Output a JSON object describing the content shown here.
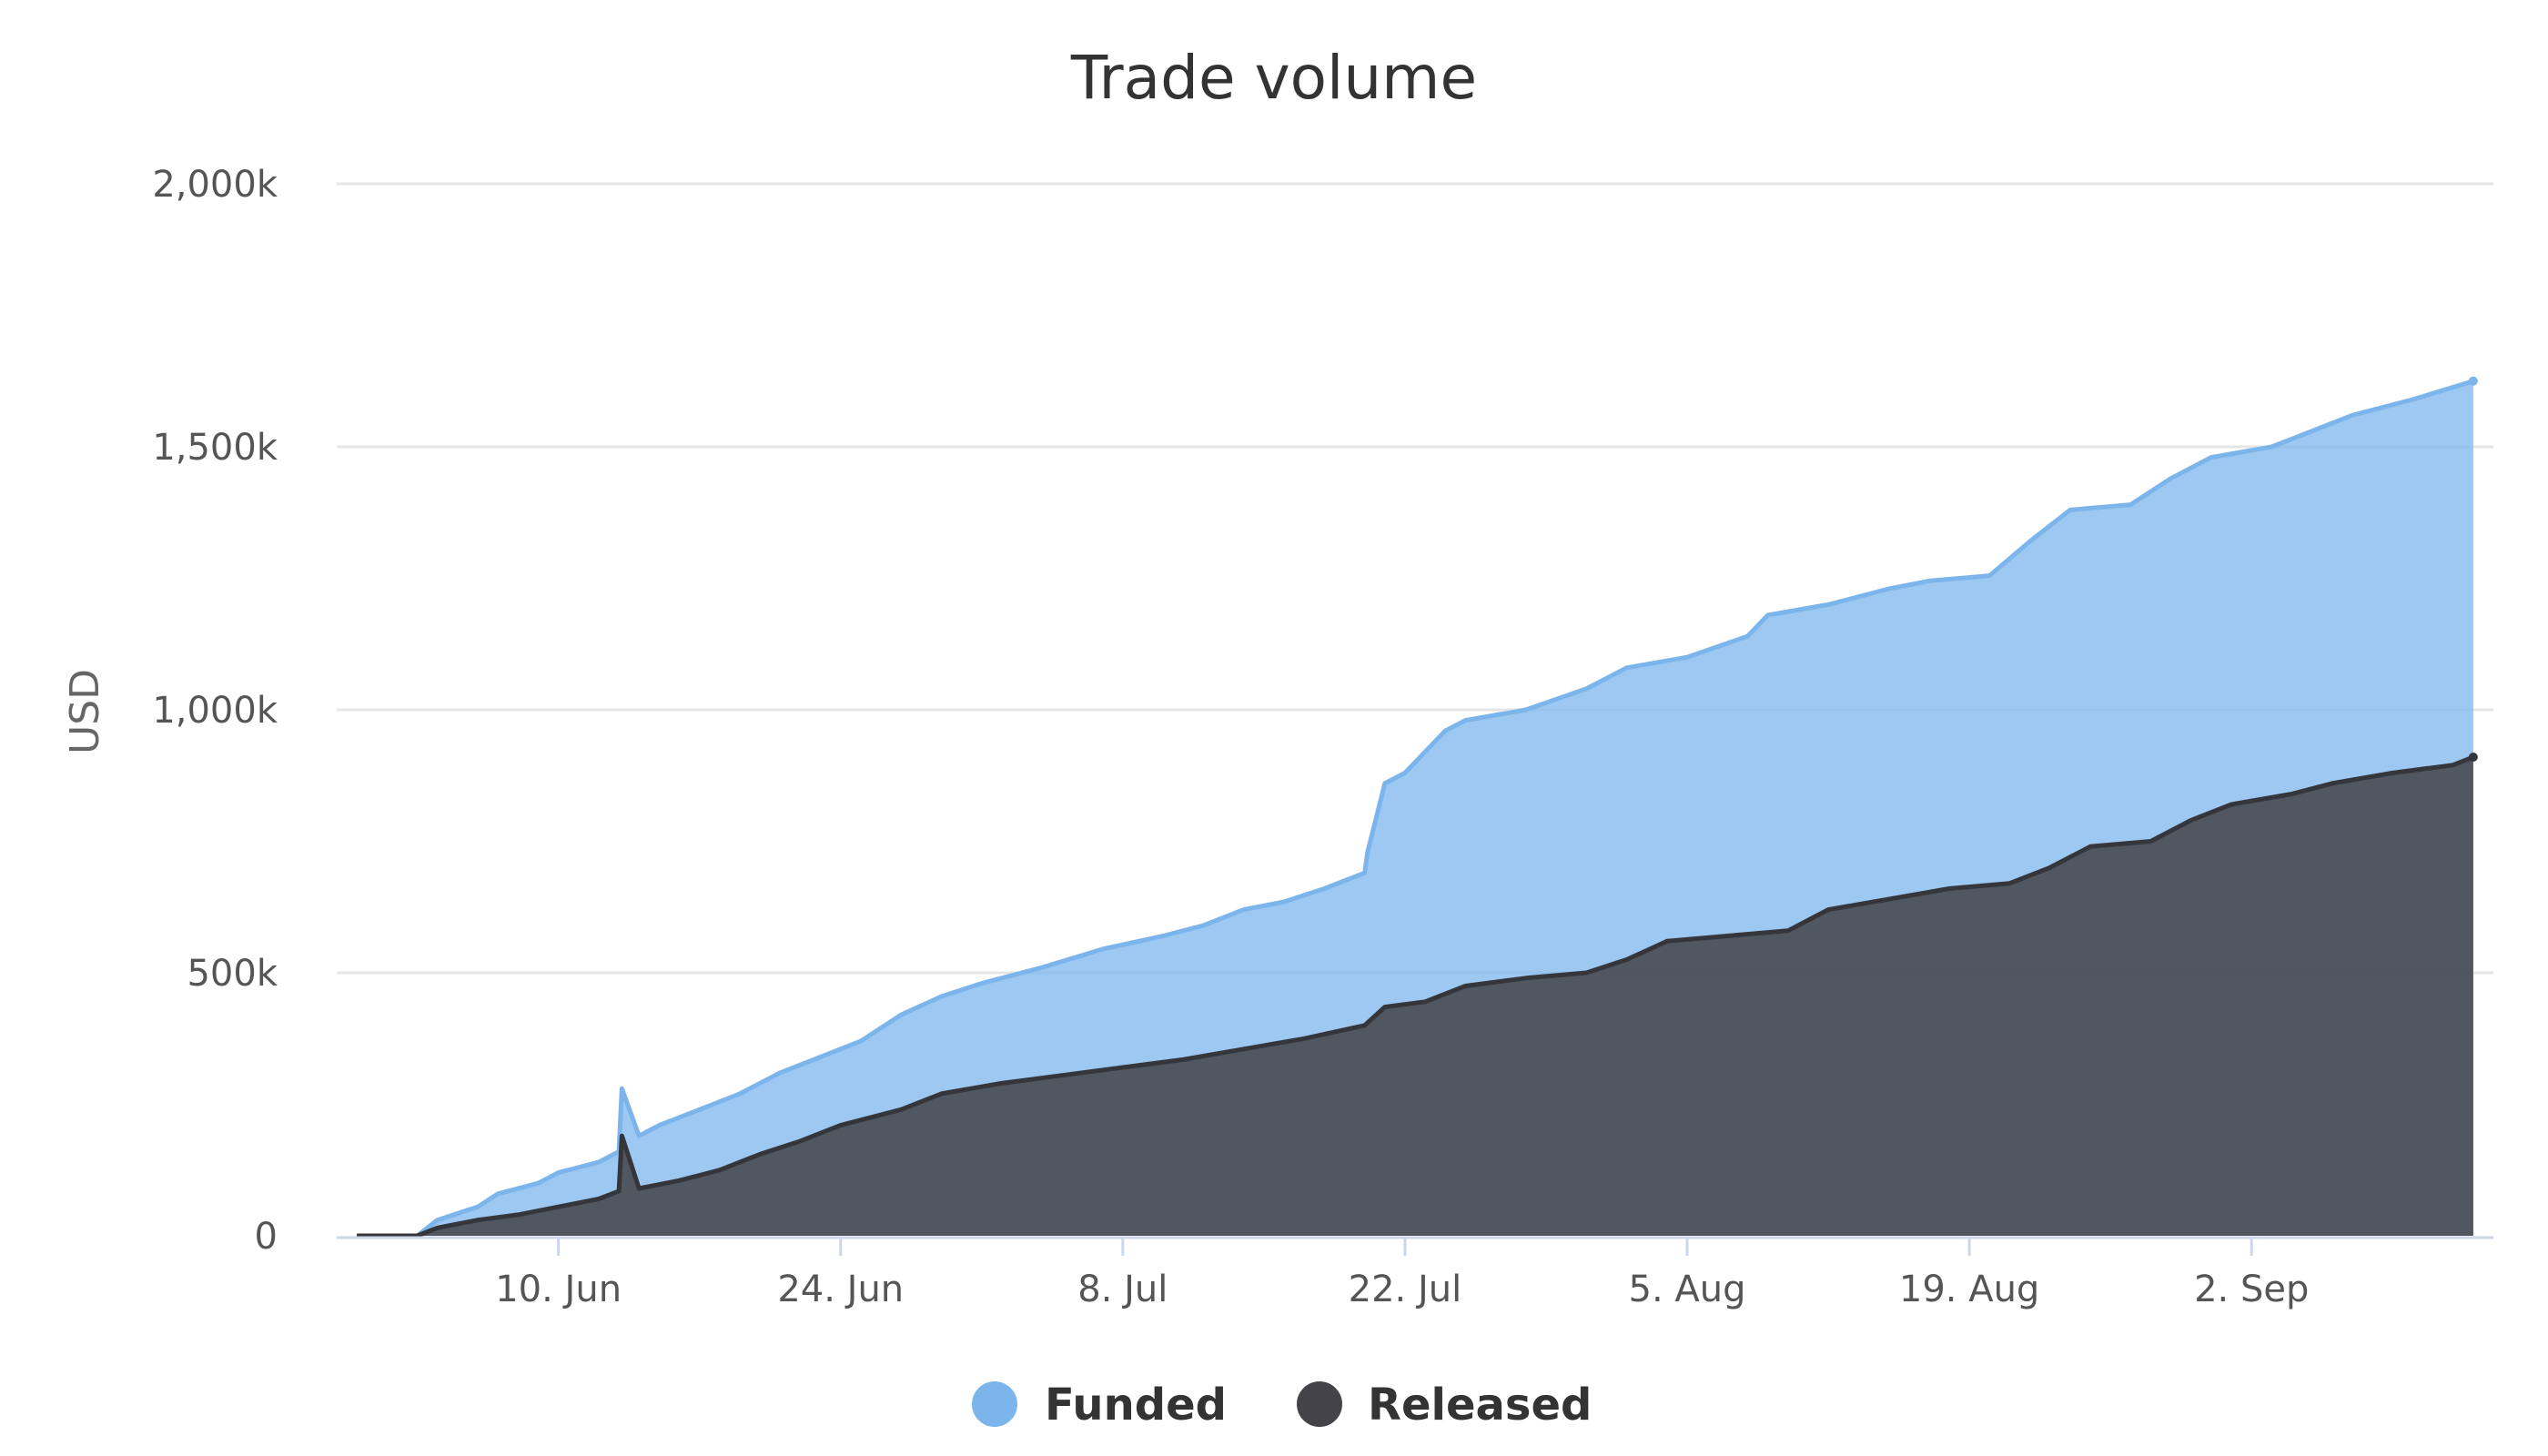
{
  "chart_data": {
    "type": "area",
    "title": "Trade volume",
    "ylabel": "USD",
    "xlabel": "",
    "ylim": [
      0,
      2000000
    ],
    "y_ticks": [
      {
        "value": 0,
        "label": "0"
      },
      {
        "value": 500000,
        "label": "500k"
      },
      {
        "value": 1000000,
        "label": "1,000k"
      },
      {
        "value": 1500000,
        "label": "1,500k"
      },
      {
        "value": 2000000,
        "label": "2,000k"
      }
    ],
    "x_range": [
      "2019-05-30",
      "2019-09-14"
    ],
    "x_ticks": [
      {
        "date": "2019-06-10",
        "label": "10. Jun"
      },
      {
        "date": "2019-06-24",
        "label": "24. Jun"
      },
      {
        "date": "2019-07-08",
        "label": "8. Jul"
      },
      {
        "date": "2019-07-22",
        "label": "22. Jul"
      },
      {
        "date": "2019-08-05",
        "label": "5. Aug"
      },
      {
        "date": "2019-08-19",
        "label": "19. Aug"
      },
      {
        "date": "2019-09-02",
        "label": "2. Sep"
      }
    ],
    "legend_position": "bottom-center",
    "grid": true,
    "stacking": "overlapping",
    "series": [
      {
        "name": "Funded",
        "color": "#7cb5ec",
        "data": [
          [
            "2019-05-31",
            0
          ],
          [
            "2019-06-03",
            0
          ],
          [
            "2019-06-04",
            30000
          ],
          [
            "2019-06-06",
            55000
          ],
          [
            "2019-06-07",
            80000
          ],
          [
            "2019-06-09",
            100000
          ],
          [
            "2019-06-10",
            120000
          ],
          [
            "2019-06-12",
            140000
          ],
          [
            "2019-06-13",
            160000
          ],
          [
            "2019-06-13",
            280000
          ],
          [
            "2019-06-14",
            190000
          ],
          [
            "2019-06-15",
            210000
          ],
          [
            "2019-06-17",
            240000
          ],
          [
            "2019-06-19",
            270000
          ],
          [
            "2019-06-21",
            310000
          ],
          [
            "2019-06-23",
            340000
          ],
          [
            "2019-06-25",
            370000
          ],
          [
            "2019-06-27",
            420000
          ],
          [
            "2019-06-29",
            455000
          ],
          [
            "2019-07-01",
            480000
          ],
          [
            "2019-07-04",
            510000
          ],
          [
            "2019-07-07",
            545000
          ],
          [
            "2019-07-10",
            570000
          ],
          [
            "2019-07-12",
            590000
          ],
          [
            "2019-07-14",
            620000
          ],
          [
            "2019-07-16",
            635000
          ],
          [
            "2019-07-18",
            660000
          ],
          [
            "2019-07-20",
            690000
          ],
          [
            "2019-07-20",
            730000
          ],
          [
            "2019-07-21",
            860000
          ],
          [
            "2019-07-22",
            880000
          ],
          [
            "2019-07-23",
            920000
          ],
          [
            "2019-07-24",
            960000
          ],
          [
            "2019-07-25",
            980000
          ],
          [
            "2019-07-28",
            1000000
          ],
          [
            "2019-07-31",
            1040000
          ],
          [
            "2019-08-02",
            1080000
          ],
          [
            "2019-08-05",
            1100000
          ],
          [
            "2019-08-08",
            1140000
          ],
          [
            "2019-08-09",
            1180000
          ],
          [
            "2019-08-12",
            1200000
          ],
          [
            "2019-08-15",
            1230000
          ],
          [
            "2019-08-17",
            1245000
          ],
          [
            "2019-08-20",
            1255000
          ],
          [
            "2019-08-22",
            1320000
          ],
          [
            "2019-08-24",
            1380000
          ],
          [
            "2019-08-27",
            1390000
          ],
          [
            "2019-08-29",
            1440000
          ],
          [
            "2019-08-31",
            1480000
          ],
          [
            "2019-09-03",
            1500000
          ],
          [
            "2019-09-05",
            1530000
          ],
          [
            "2019-09-07",
            1560000
          ],
          [
            "2019-09-10",
            1590000
          ],
          [
            "2019-09-13",
            1625000
          ]
        ]
      },
      {
        "name": "Released",
        "color": "#434348",
        "data": [
          [
            "2019-05-31",
            0
          ],
          [
            "2019-06-03",
            0
          ],
          [
            "2019-06-04",
            15000
          ],
          [
            "2019-06-06",
            30000
          ],
          [
            "2019-06-08",
            40000
          ],
          [
            "2019-06-10",
            55000
          ],
          [
            "2019-06-12",
            70000
          ],
          [
            "2019-06-13",
            85000
          ],
          [
            "2019-06-13",
            190000
          ],
          [
            "2019-06-14",
            90000
          ],
          [
            "2019-06-16",
            105000
          ],
          [
            "2019-06-18",
            125000
          ],
          [
            "2019-06-20",
            155000
          ],
          [
            "2019-06-22",
            180000
          ],
          [
            "2019-06-24",
            210000
          ],
          [
            "2019-06-27",
            240000
          ],
          [
            "2019-06-29",
            270000
          ],
          [
            "2019-07-02",
            290000
          ],
          [
            "2019-07-05",
            305000
          ],
          [
            "2019-07-08",
            320000
          ],
          [
            "2019-07-11",
            335000
          ],
          [
            "2019-07-14",
            355000
          ],
          [
            "2019-07-17",
            375000
          ],
          [
            "2019-07-20",
            400000
          ],
          [
            "2019-07-21",
            435000
          ],
          [
            "2019-07-23",
            445000
          ],
          [
            "2019-07-25",
            475000
          ],
          [
            "2019-07-28",
            490000
          ],
          [
            "2019-07-31",
            500000
          ],
          [
            "2019-08-02",
            525000
          ],
          [
            "2019-08-04",
            560000
          ],
          [
            "2019-08-07",
            570000
          ],
          [
            "2019-08-10",
            580000
          ],
          [
            "2019-08-12",
            620000
          ],
          [
            "2019-08-15",
            640000
          ],
          [
            "2019-08-18",
            660000
          ],
          [
            "2019-08-21",
            670000
          ],
          [
            "2019-08-23",
            700000
          ],
          [
            "2019-08-25",
            740000
          ],
          [
            "2019-08-28",
            750000
          ],
          [
            "2019-08-30",
            790000
          ],
          [
            "2019-09-01",
            820000
          ],
          [
            "2019-09-04",
            840000
          ],
          [
            "2019-09-06",
            860000
          ],
          [
            "2019-09-09",
            880000
          ],
          [
            "2019-09-12",
            895000
          ],
          [
            "2019-09-13",
            910000
          ]
        ]
      }
    ]
  }
}
